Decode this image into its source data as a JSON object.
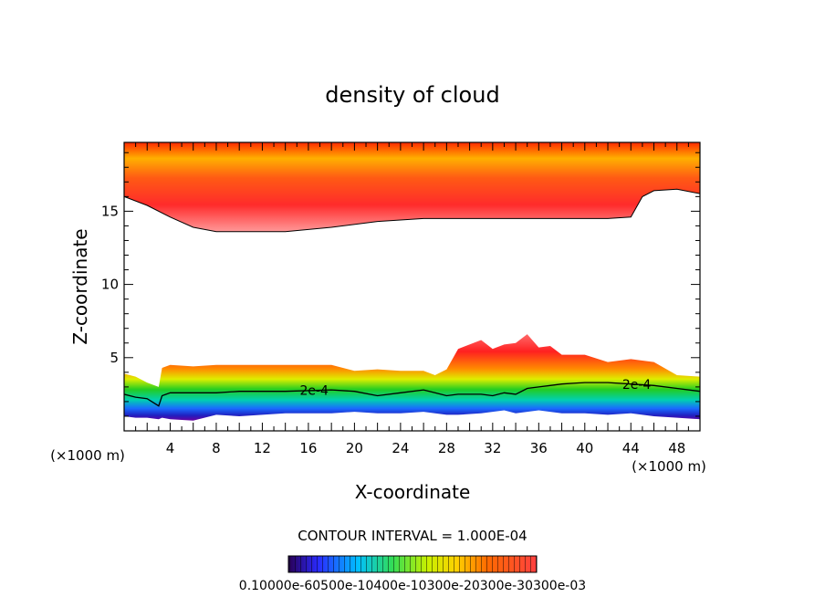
{
  "chart_data": {
    "type": "contour",
    "title": "density of cloud",
    "xlabel": "X-coordinate",
    "ylabel": "Z-coordinate",
    "x_unit": "(×1000 m)",
    "xlim": [
      0,
      50
    ],
    "ylim": [
      0,
      19.7
    ],
    "x_ticks": [
      4,
      8,
      12,
      16,
      20,
      24,
      28,
      32,
      36,
      40,
      44,
      48
    ],
    "y_ticks": [
      5,
      10,
      15
    ],
    "contour_label": "2e-4",
    "contour_interval_text": "CONTOUR INTERVAL = 1.000E-04",
    "colorbar_labels_text": "0.10000e-60500e-10400e-10300e-20300e-30300e-03",
    "upper_layer": {
      "x": [
        0,
        2,
        4,
        6,
        8,
        10,
        14,
        18,
        22,
        26,
        30,
        34,
        38,
        42,
        44,
        45,
        46,
        48,
        50
      ],
      "base": [
        16.0,
        15.4,
        14.6,
        13.9,
        13.6,
        13.6,
        13.6,
        13.9,
        14.3,
        14.5,
        14.5,
        14.5,
        14.5,
        14.5,
        14.6,
        16.0,
        16.4,
        16.5,
        16.2
      ]
    },
    "lower_layer": {
      "x": [
        0,
        1,
        2,
        3,
        3.3,
        4,
        6,
        8,
        10,
        14,
        18,
        20,
        22,
        24,
        26,
        27,
        28,
        29,
        31,
        32,
        33,
        34,
        35,
        36,
        37,
        38,
        40,
        42,
        44,
        46,
        48,
        50
      ],
      "top": [
        3.9,
        3.7,
        3.3,
        3.0,
        4.3,
        4.5,
        4.4,
        4.5,
        4.5,
        4.5,
        4.5,
        4.1,
        4.2,
        4.1,
        4.1,
        3.8,
        4.2,
        5.6,
        6.2,
        5.6,
        5.9,
        6.0,
        6.6,
        5.7,
        5.8,
        5.2,
        5.2,
        4.7,
        4.9,
        4.7,
        3.8,
        3.7
      ],
      "contour_2e4": [
        2.5,
        2.3,
        2.2,
        1.7,
        2.4,
        2.6,
        2.6,
        2.6,
        2.7,
        2.7,
        2.8,
        2.7,
        2.4,
        2.6,
        2.8,
        2.6,
        2.4,
        2.5,
        2.5,
        2.4,
        2.6,
        2.5,
        2.9,
        3.0,
        3.1,
        3.2,
        3.3,
        3.3,
        3.2,
        3.1,
        2.9,
        2.7
      ],
      "base": [
        1.0,
        0.9,
        0.9,
        0.8,
        0.9,
        0.8,
        0.7,
        1.1,
        1.0,
        1.2,
        1.2,
        1.3,
        1.2,
        1.2,
        1.3,
        1.2,
        1.1,
        1.1,
        1.2,
        1.3,
        1.4,
        1.2,
        1.3,
        1.4,
        1.3,
        1.2,
        1.2,
        1.1,
        1.2,
        1.0,
        0.9,
        0.8
      ]
    }
  }
}
